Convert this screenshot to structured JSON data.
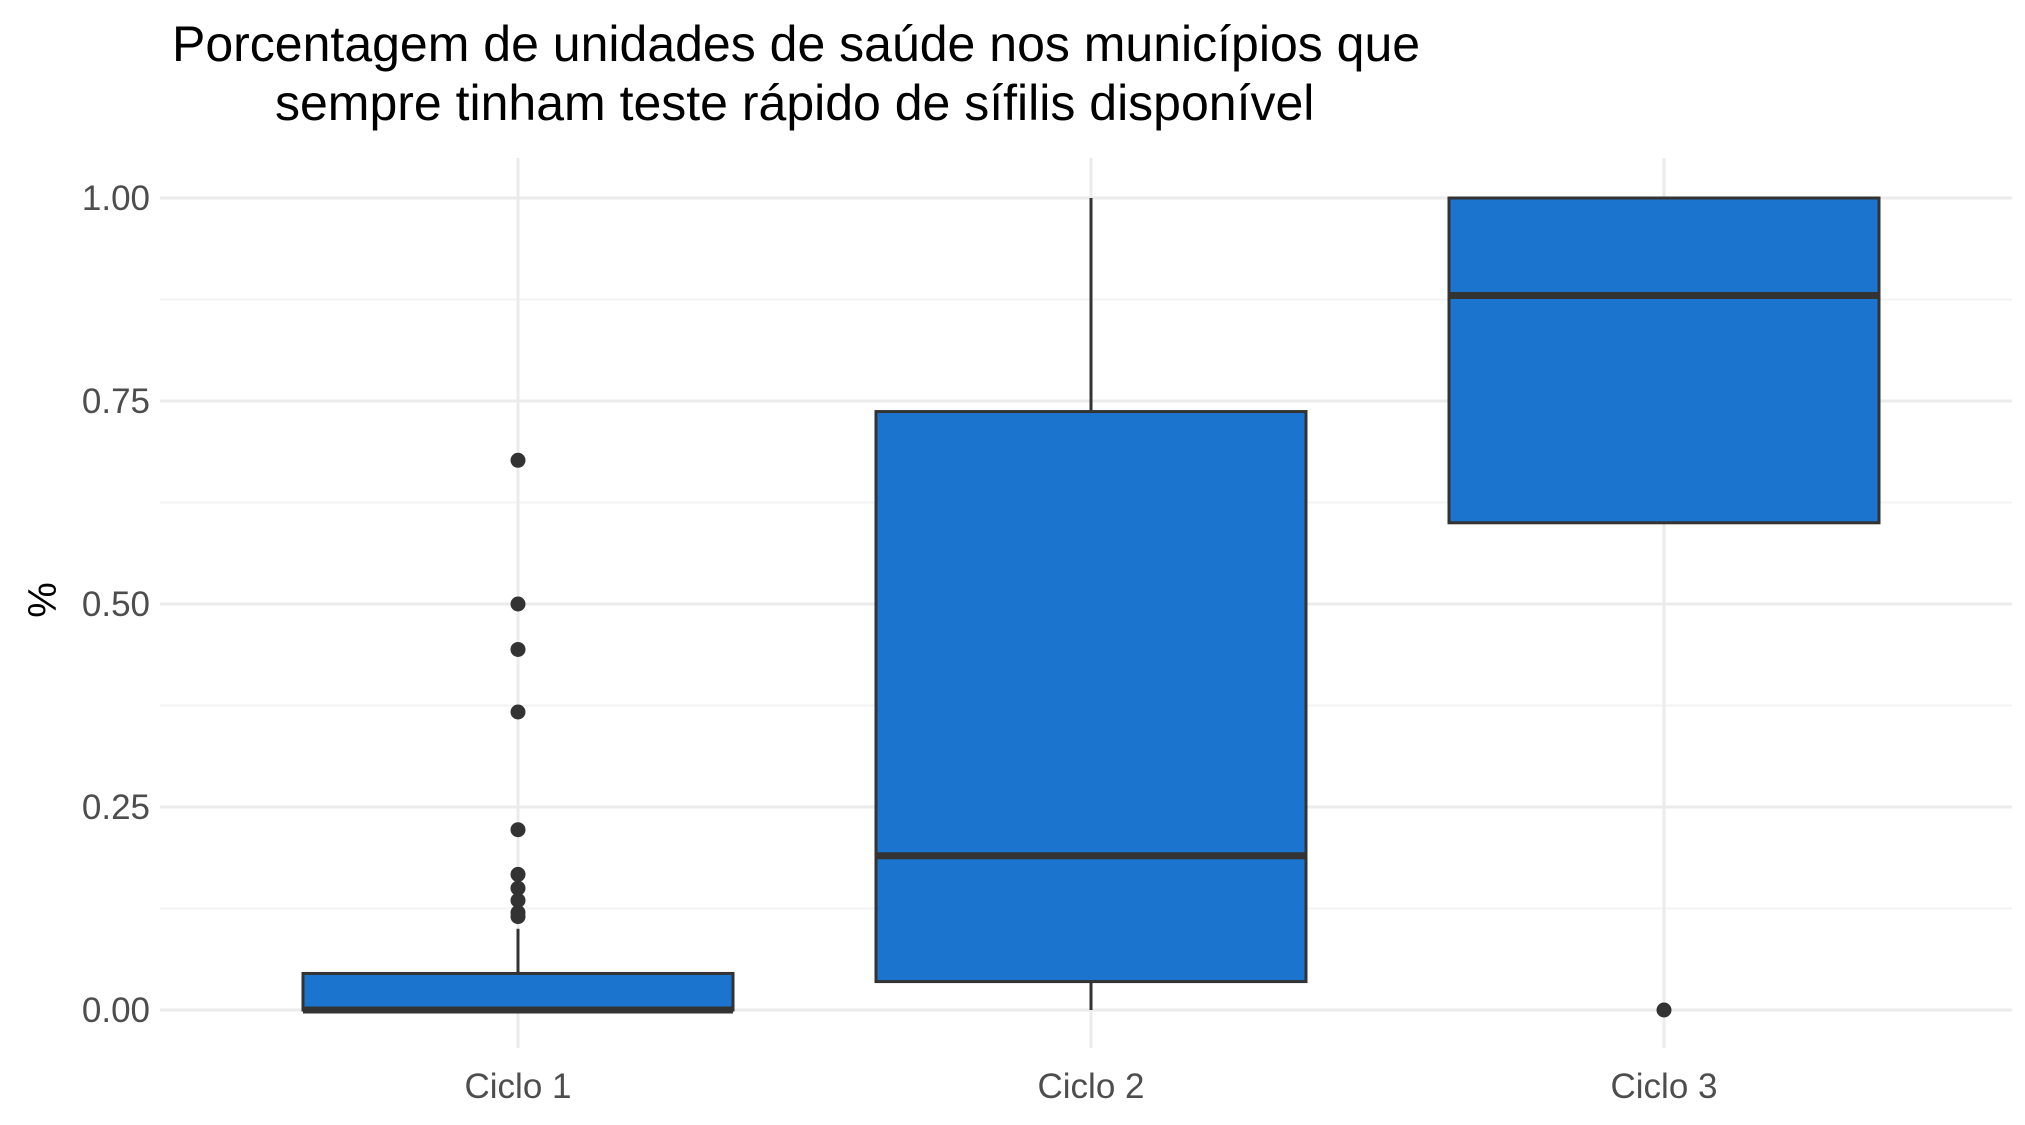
{
  "chart_data": {
    "type": "boxplot",
    "title_lines": [
      "Porcentagem de unidades de saúde nos municípios que",
      "sempre tinham teste rápido de sífilis disponível"
    ],
    "xlabel": "",
    "ylabel": "%",
    "ylim": [
      -0.05,
      1.05
    ],
    "y_ticks": [
      {
        "value": 0.0,
        "label": "0.00"
      },
      {
        "value": 0.25,
        "label": "0.25"
      },
      {
        "value": 0.5,
        "label": "0.50"
      },
      {
        "value": 0.75,
        "label": "0.75"
      },
      {
        "value": 1.0,
        "label": "1.00"
      }
    ],
    "y_minor_ticks": [
      0.125,
      0.375,
      0.625,
      0.875
    ],
    "grid": true,
    "legend": "none",
    "categories": [
      "Ciclo 1",
      "Ciclo 2",
      "Ciclo 3"
    ],
    "boxes": [
      {
        "category": "Ciclo 1",
        "whisker_low": 0.0,
        "q1": 0.0,
        "median": 0.0,
        "q3": 0.045,
        "whisker_high": 0.1,
        "outliers": [
          0.115,
          0.12,
          0.135,
          0.15,
          0.167,
          0.222,
          0.367,
          0.444,
          0.5,
          0.677
        ]
      },
      {
        "category": "Ciclo 2",
        "whisker_low": 0.0,
        "q1": 0.035,
        "median": 0.19,
        "q3": 0.737,
        "whisker_high": 1.0,
        "outliers": []
      },
      {
        "category": "Ciclo 3",
        "whisker_low": 0.6,
        "q1": 0.6,
        "median": 0.88,
        "q3": 1.0,
        "whisker_high": 1.0,
        "outliers": [
          0.0
        ]
      }
    ],
    "colors": {
      "box_fill": "#1b75cf",
      "box_stroke": "#333333",
      "grid_major": "#ebebeb",
      "grid_minor": "#f3f3f3",
      "tick_text": "#4d4d4d",
      "title_text": "#000000"
    }
  }
}
